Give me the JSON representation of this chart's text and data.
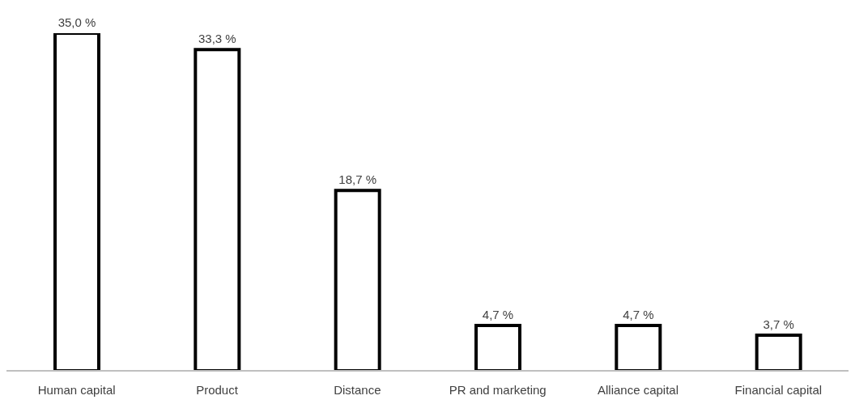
{
  "chart_data": {
    "type": "bar",
    "categories": [
      "Human capital",
      "Product",
      "Distance",
      "PR and marketing",
      "Alliance capital",
      "Financial capital"
    ],
    "values": [
      35.0,
      33.3,
      18.7,
      4.7,
      4.7,
      3.7
    ],
    "value_labels": [
      "35,0 %",
      "33,3 %",
      "18,7 %",
      "4,7 %",
      "4,7 %",
      "3,7 %"
    ],
    "color": "#000000",
    "grid": false
  }
}
